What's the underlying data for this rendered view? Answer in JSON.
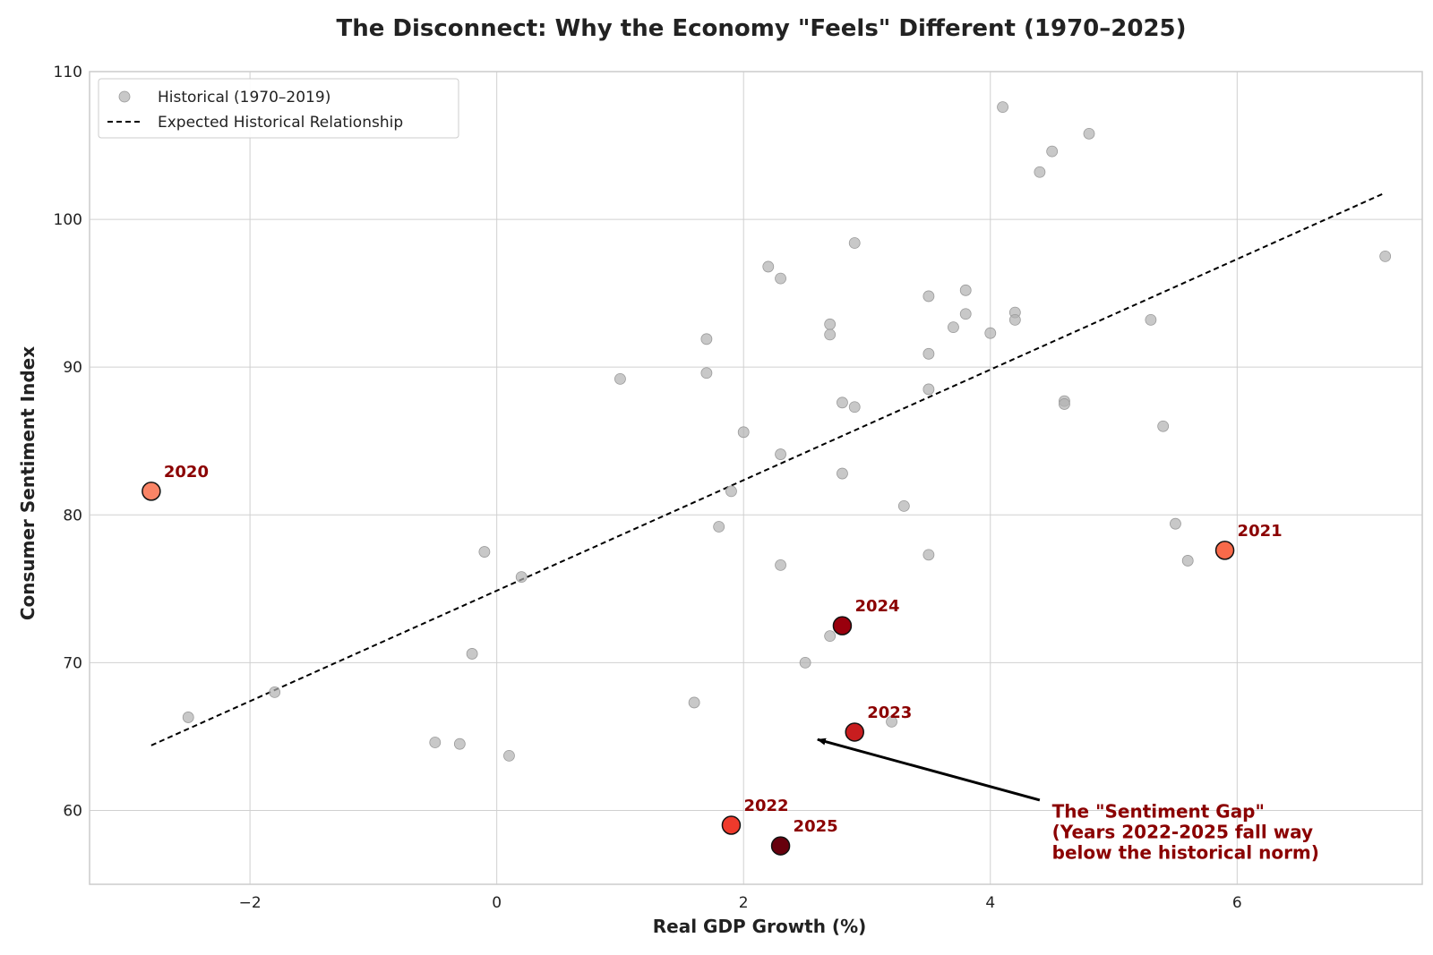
{
  "chart_data": {
    "type": "scatter",
    "title": "The Disconnect: Why the Economy \"Feels\" Different (1970–2025)",
    "xlabel": "Real GDP Growth (%)",
    "ylabel": "Consumer Sentiment Index",
    "xlim": [
      -3.3,
      7.5
    ],
    "ylim": [
      55,
      110
    ],
    "xticks": [
      -2,
      0,
      2,
      4,
      6
    ],
    "xtick_labels": [
      "−2",
      "0",
      "2",
      "4",
      "6"
    ],
    "yticks": [
      60,
      70,
      80,
      90,
      100,
      110
    ],
    "ytick_labels": [
      "60",
      "70",
      "80",
      "90",
      "100",
      "110"
    ],
    "grid": true,
    "legend": {
      "placement": "top-left",
      "entries": [
        {
          "label": "Historical (1970–2019)",
          "kind": "marker",
          "color": "#b0b0b0"
        },
        {
          "label": "Expected Historical Relationship",
          "kind": "dashed-line",
          "color": "#000000"
        }
      ]
    },
    "series": [
      {
        "name": "Historical (1970–2019)",
        "color": "#b0b0b0",
        "points": [
          {
            "x": -2.5,
            "y": 66.3
          },
          {
            "x": -1.8,
            "y": 68.0
          },
          {
            "x": -0.5,
            "y": 64.6
          },
          {
            "x": -0.3,
            "y": 64.5
          },
          {
            "x": -0.2,
            "y": 70.6
          },
          {
            "x": -0.1,
            "y": 77.5
          },
          {
            "x": 0.1,
            "y": 63.7
          },
          {
            "x": 0.2,
            "y": 75.8
          },
          {
            "x": 1.0,
            "y": 89.2
          },
          {
            "x": 1.6,
            "y": 67.3
          },
          {
            "x": 1.7,
            "y": 91.9
          },
          {
            "x": 1.7,
            "y": 89.6
          },
          {
            "x": 1.8,
            "y": 79.2
          },
          {
            "x": 1.9,
            "y": 81.6
          },
          {
            "x": 2.0,
            "y": 85.6
          },
          {
            "x": 2.2,
            "y": 96.8
          },
          {
            "x": 2.3,
            "y": 96.0
          },
          {
            "x": 2.3,
            "y": 84.1
          },
          {
            "x": 2.3,
            "y": 76.6
          },
          {
            "x": 2.5,
            "y": 70.0
          },
          {
            "x": 2.7,
            "y": 92.9
          },
          {
            "x": 2.7,
            "y": 92.2
          },
          {
            "x": 2.7,
            "y": 71.8
          },
          {
            "x": 2.8,
            "y": 87.6
          },
          {
            "x": 2.8,
            "y": 82.8
          },
          {
            "x": 2.9,
            "y": 98.4
          },
          {
            "x": 2.9,
            "y": 87.3
          },
          {
            "x": 3.2,
            "y": 66.0
          },
          {
            "x": 3.3,
            "y": 80.6
          },
          {
            "x": 3.5,
            "y": 94.8
          },
          {
            "x": 3.5,
            "y": 90.9
          },
          {
            "x": 3.5,
            "y": 88.5
          },
          {
            "x": 3.5,
            "y": 77.3
          },
          {
            "x": 3.7,
            "y": 92.7
          },
          {
            "x": 3.8,
            "y": 95.2
          },
          {
            "x": 3.8,
            "y": 93.6
          },
          {
            "x": 4.0,
            "y": 92.3
          },
          {
            "x": 4.1,
            "y": 107.6
          },
          {
            "x": 4.2,
            "y": 93.7
          },
          {
            "x": 4.2,
            "y": 93.2
          },
          {
            "x": 4.4,
            "y": 103.2
          },
          {
            "x": 4.5,
            "y": 104.6
          },
          {
            "x": 4.6,
            "y": 87.7
          },
          {
            "x": 4.6,
            "y": 87.5
          },
          {
            "x": 4.8,
            "y": 105.8
          },
          {
            "x": 5.3,
            "y": 93.2
          },
          {
            "x": 5.4,
            "y": 86.0
          },
          {
            "x": 5.5,
            "y": 79.4
          },
          {
            "x": 5.6,
            "y": 76.9
          },
          {
            "x": 7.2,
            "y": 97.5
          }
        ]
      },
      {
        "name": "",
        "points": [
          {
            "label": "2020",
            "x": -2.8,
            "y": 81.6,
            "color": "#fa8466"
          },
          {
            "label": "2021",
            "x": 5.9,
            "y": 77.6,
            "color": "#f96a4a"
          },
          {
            "label": "2022",
            "x": 1.9,
            "y": 59.0,
            "color": "#ee3a2c"
          },
          {
            "label": "2023",
            "x": 2.9,
            "y": 65.3,
            "color": "#c81d1f"
          },
          {
            "label": "2024",
            "x": 2.8,
            "y": 72.5,
            "color": "#99000d"
          },
          {
            "label": "2025",
            "x": 2.3,
            "y": 57.6,
            "color": "#67000d"
          }
        ]
      }
    ],
    "trendline": {
      "name": "Expected Historical Relationship",
      "style": "dashed",
      "color": "#000000",
      "x": [
        -2.8,
        7.2
      ],
      "y": [
        64.4,
        101.8
      ]
    },
    "annotation": {
      "lines": [
        "The \"Sentiment Gap\"",
        "(Years 2022-2025 fall way",
        "below the historical norm)"
      ],
      "color": "#8b0000",
      "text_anchor": {
        "x": 4.5,
        "y": 59.5
      },
      "arrow_from": {
        "x": 4.4,
        "y": 60.7
      },
      "arrow_to": {
        "x": 2.6,
        "y": 64.8
      }
    }
  }
}
